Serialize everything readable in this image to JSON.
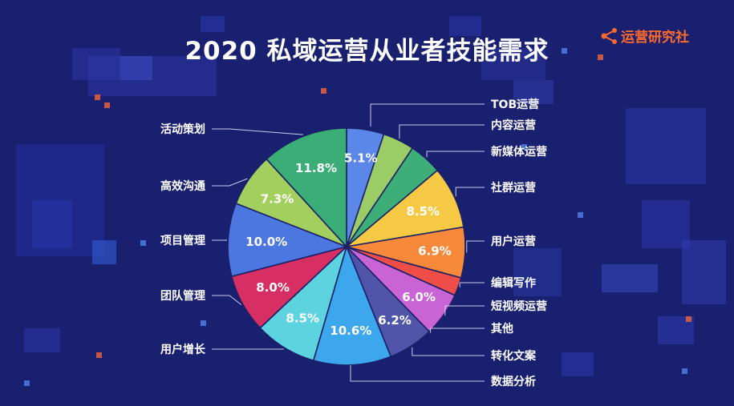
{
  "title": "2020 私域运营从业者技能需求",
  "logo": {
    "text": "运营研究社",
    "icon": "share-icon",
    "color": "#ff6a2b"
  },
  "chart_data": {
    "type": "pie",
    "title": "2020 私域运营从业者技能需求",
    "slices": [
      {
        "label": "TOB运营",
        "value": 5.1,
        "display": "5.1%",
        "color": "#5b87e8"
      },
      {
        "label": "内容运营",
        "value": 4.3,
        "display": "",
        "color": "#9ccc65"
      },
      {
        "label": "新媒体运营",
        "value": 4.5,
        "display": "",
        "color": "#3dae78"
      },
      {
        "label": "社群运营",
        "value": 8.5,
        "display": "8.5%",
        "color": "#f6c945"
      },
      {
        "label": "用户运营",
        "value": 6.9,
        "display": "6.9%",
        "color": "#f68a3a"
      },
      {
        "label": "编辑写作",
        "value": 2.5,
        "display": "",
        "color": "#ee4e47"
      },
      {
        "label": "短视频运营",
        "value": 6.0,
        "display": "6.0%",
        "color": "#c963d6"
      },
      {
        "label": "其他",
        "value": 0,
        "display": "",
        "color": "#8a58c6"
      },
      {
        "label": "转化文案",
        "value": 6.2,
        "display": "6.2%",
        "color": "#5055a9"
      },
      {
        "label": "数据分析",
        "value": 10.6,
        "display": "10.6%",
        "color": "#3ca7ec"
      },
      {
        "label": "用户增长",
        "value": 8.5,
        "display": "8.5%",
        "color": "#5cd3de"
      },
      {
        "label": "团队管理",
        "value": 8.0,
        "display": "8.0%",
        "color": "#d72f64"
      },
      {
        "label": "项目管理",
        "value": 10.0,
        "display": "10.0%",
        "color": "#4c77e0"
      },
      {
        "label": "高效沟通",
        "value": 7.3,
        "display": "7.3%",
        "color": "#a2cf5e"
      },
      {
        "label": "活动策划",
        "value": 11.8,
        "display": "11.8%",
        "color": "#3bad76"
      }
    ]
  }
}
